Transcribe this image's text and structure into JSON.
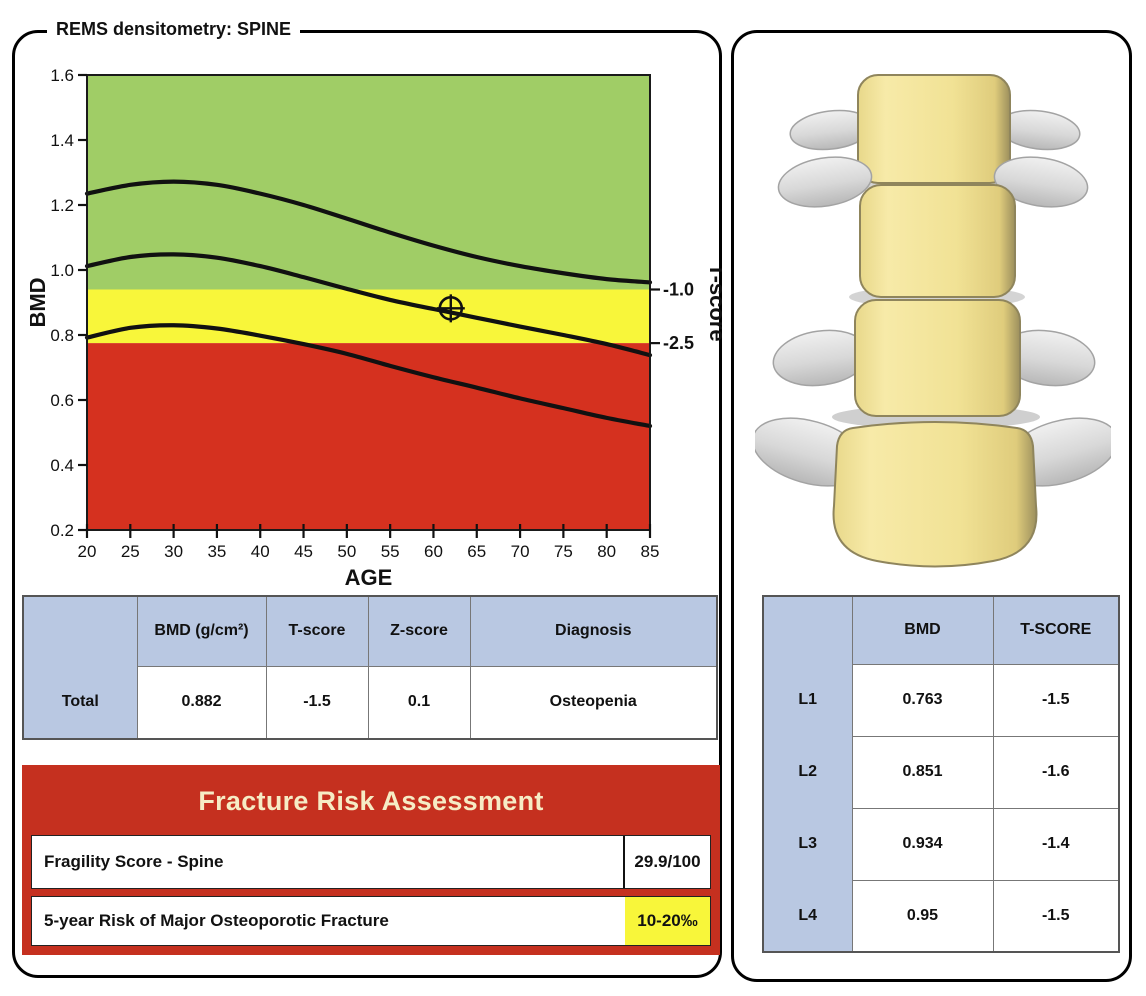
{
  "left_panel": {
    "title": "REMS densitometry: SPINE",
    "results_table": {
      "headers": [
        "",
        "BMD (g/cm²)",
        "T-score",
        "Z-score",
        "Diagnosis"
      ],
      "rows": [
        {
          "label": "Total",
          "bmd": "0.882",
          "t_score": "-1.5",
          "z_score": "0.1",
          "diagnosis": "Osteopenia"
        }
      ]
    },
    "fracture_risk": {
      "title": "Fracture Risk Assessment",
      "rows": [
        {
          "label": "Fragility Score - Spine",
          "value": "29.9/100",
          "highlight": false
        },
        {
          "label": "5-year Risk of Major Osteoporotic Fracture",
          "value": "10-20‰",
          "highlight": true
        }
      ]
    }
  },
  "right_panel": {
    "vertebrae_table": {
      "headers": [
        "",
        "BMD",
        "T-SCORE"
      ],
      "rows": [
        {
          "label": "L1",
          "bmd": "0.763",
          "t_score": "-1.5"
        },
        {
          "label": "L2",
          "bmd": "0.851",
          "t_score": "-1.6"
        },
        {
          "label": "L3",
          "bmd": "0.934",
          "t_score": "-1.4"
        },
        {
          "label": "L4",
          "bmd": "0.95",
          "t_score": "-1.5"
        }
      ]
    }
  },
  "chart_data": {
    "type": "line",
    "title": "",
    "xlabel": "AGE",
    "ylabel": "BMD",
    "y2label": "T-score",
    "xlim": [
      20,
      85
    ],
    "ylim": [
      0.2,
      1.6
    ],
    "x_ticks": [
      20,
      25,
      30,
      35,
      40,
      45,
      50,
      55,
      60,
      65,
      70,
      75,
      80,
      85
    ],
    "y_ticks": [
      0.2,
      0.4,
      0.6,
      0.8,
      1.0,
      1.2,
      1.4,
      1.6
    ],
    "grid": false,
    "zones": [
      {
        "name": "normal",
        "bmd_range": [
          0.94,
          1.6
        ],
        "color": "#a0cd66"
      },
      {
        "name": "osteopenia",
        "bmd_range": [
          0.775,
          0.94
        ],
        "color": "#f8f63a"
      },
      {
        "name": "osteoporosis",
        "bmd_range": [
          0.2,
          0.775
        ],
        "color": "#d5311f"
      }
    ],
    "t_score_marks": [
      {
        "label": "-1.0",
        "bmd": 0.94
      },
      {
        "label": "-2.5",
        "bmd": 0.775
      }
    ],
    "series": [
      {
        "name": "reference-curve-upper",
        "x": [
          20,
          25,
          30,
          35,
          40,
          45,
          50,
          55,
          60,
          65,
          70,
          75,
          80,
          85
        ],
        "y": [
          1.235,
          1.262,
          1.272,
          1.262,
          1.235,
          1.2,
          1.158,
          1.115,
          1.075,
          1.04,
          1.012,
          0.99,
          0.972,
          0.962
        ]
      },
      {
        "name": "reference-curve-mean",
        "x": [
          20,
          25,
          30,
          35,
          40,
          45,
          50,
          55,
          60,
          65,
          70,
          75,
          80,
          85
        ],
        "y": [
          1.012,
          1.04,
          1.048,
          1.038,
          1.012,
          0.978,
          0.942,
          0.908,
          0.88,
          0.853,
          0.826,
          0.8,
          0.772,
          0.738
        ]
      },
      {
        "name": "reference-curve-lower",
        "x": [
          20,
          25,
          30,
          35,
          40,
          45,
          50,
          55,
          60,
          65,
          70,
          75,
          80,
          85
        ],
        "y": [
          0.792,
          0.822,
          0.83,
          0.82,
          0.798,
          0.772,
          0.742,
          0.705,
          0.67,
          0.638,
          0.605,
          0.575,
          0.545,
          0.52
        ]
      }
    ],
    "patient_point": {
      "age": 62,
      "bmd": 0.882
    },
    "curve_color": "#111111"
  },
  "colors": {
    "zone_normal": "#a0cd66",
    "zone_osteopenia": "#f8f63a",
    "zone_osteoporosis": "#d5311f",
    "table_header": "#b9c8e2",
    "fracture_box": "#c5301f",
    "fracture_title_text": "#f6ecc5",
    "risk_highlight": "#f8f63a",
    "vertebra_body": "#f2e49b",
    "vertebra_process": "#d8d8d8"
  }
}
